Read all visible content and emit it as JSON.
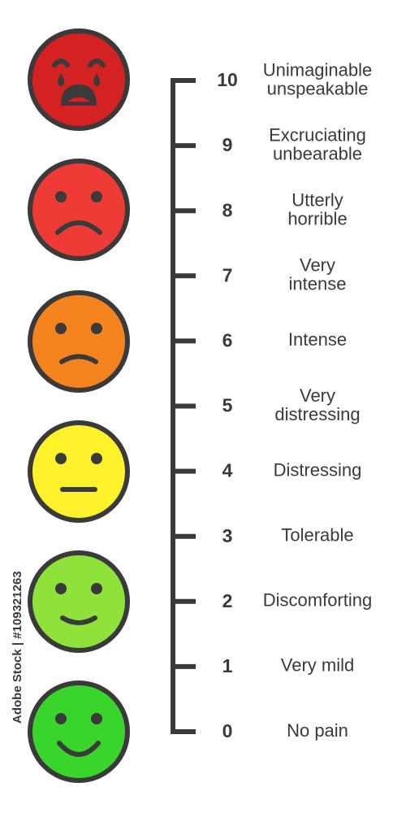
{
  "levels": [
    {
      "number": 10,
      "label": [
        "Unimaginable",
        "unspeakable"
      ]
    },
    {
      "number": 9,
      "label": [
        "Excruciating",
        "unbearable"
      ]
    },
    {
      "number": 8,
      "label": [
        "Utterly",
        "horrible"
      ]
    },
    {
      "number": 7,
      "label": [
        "Very",
        "intense"
      ]
    },
    {
      "number": 6,
      "label": [
        "Intense"
      ]
    },
    {
      "number": 5,
      "label": [
        "Very",
        "distressing"
      ]
    },
    {
      "number": 4,
      "label": [
        "Distressing"
      ]
    },
    {
      "number": 3,
      "label": [
        "Tolerable"
      ]
    },
    {
      "number": 2,
      "label": [
        "Discomforting"
      ]
    },
    {
      "number": 1,
      "label": [
        "Very mild"
      ]
    },
    {
      "number": 0,
      "label": [
        "No pain"
      ]
    }
  ],
  "watermark": "Adobe Stock | #109321263"
}
